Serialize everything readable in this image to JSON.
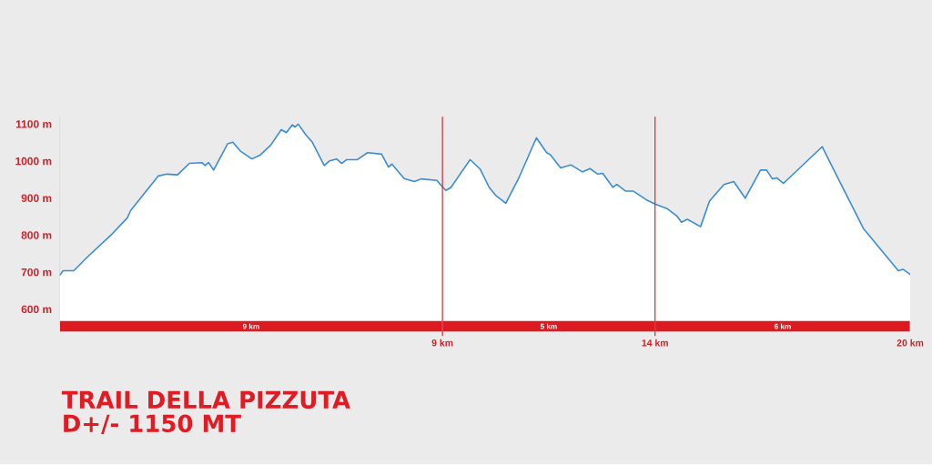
{
  "chart_data": {
    "type": "area",
    "title": "TRAIL DELLA PIZZUTA",
    "subtitle": "D+/- 1150 MT",
    "color": "#3a8dd1",
    "x": [
      0,
      0.08,
      0.33,
      0.65,
      1.22,
      1.59,
      1.67,
      2.32,
      2.52,
      2.77,
      3.05,
      3.34,
      3.42,
      3.5,
      3.62,
      3.95,
      4.07,
      4.25,
      4.52,
      4.72,
      4.96,
      5.21,
      5.33,
      5.47,
      5.53,
      5.61,
      5.78,
      5.94,
      6.22,
      6.35,
      6.51,
      6.63,
      6.75,
      7.0,
      7.24,
      7.57,
      7.73,
      7.81,
      8.1,
      8.34,
      8.5,
      8.87,
      8.95,
      9.08,
      9.2,
      9.65,
      9.89,
      10.1,
      10.25,
      10.49,
      10.79,
      11.21,
      11.45,
      11.54,
      11.78,
      12.02,
      12.29,
      12.47,
      12.65,
      12.77,
      13.01,
      13.1,
      13.31,
      13.49,
      13.79,
      14.0,
      14.28,
      14.52,
      14.62,
      14.76,
      15.07,
      15.28,
      15.62,
      15.85,
      16.12,
      16.48,
      16.62,
      16.76,
      16.86,
      17.02,
      17.93,
      18.17,
      18.9,
      19.72,
      19.83,
      20.0
    ],
    "values": [
      692,
      704,
      704,
      741,
      802,
      847,
      867,
      960,
      965,
      963,
      994,
      996,
      988,
      996,
      976,
      1047,
      1051,
      1027,
      1006,
      1017,
      1043,
      1085,
      1077,
      1098,
      1092,
      1100,
      1072,
      1051,
      988,
      1001,
      1006,
      994,
      1004,
      1004,
      1023,
      1019,
      984,
      992,
      953,
      945,
      952,
      948,
      937,
      921,
      929,
      1004,
      978,
      929,
      908,
      886,
      953,
      1063,
      1023,
      1017,
      982,
      990,
      971,
      980,
      965,
      967,
      929,
      937,
      919,
      919,
      896,
      884,
      872,
      851,
      835,
      843,
      823,
      892,
      937,
      945,
      900,
      976,
      976,
      952,
      955,
      940,
      1039,
      984,
      818,
      704,
      708,
      694
    ],
    "xlim": [
      0,
      20
    ],
    "xticks": [
      {
        "value": 9,
        "label": "9 km"
      },
      {
        "value": 14,
        "label": "14 km"
      },
      {
        "value": 20,
        "label": "20 km"
      }
    ],
    "ylim": [
      540,
      1120
    ],
    "yticks": [
      {
        "value": 600,
        "label": "600 m"
      },
      {
        "value": 700,
        "label": "700 m"
      },
      {
        "value": 800,
        "label": "800 m"
      },
      {
        "value": 900,
        "label": "900 m"
      },
      {
        "value": 1000,
        "label": "1000 m"
      },
      {
        "value": 1100,
        "label": "1100 m"
      }
    ],
    "ref_lines": [
      {
        "axis": "x",
        "value": 9,
        "color": "#d9141e"
      },
      {
        "axis": "x",
        "value": 14,
        "color": "#d9141e"
      }
    ],
    "bands": [
      {
        "axis": "x",
        "from": 0,
        "to": 9,
        "label": "9 km",
        "color": "#dc1a22"
      },
      {
        "axis": "x",
        "from": 9,
        "to": 14,
        "label": "5 km",
        "color": "#dc1a22"
      },
      {
        "axis": "x",
        "from": 14,
        "to": 20,
        "label": "6 km",
        "color": "#dc1a22"
      }
    ]
  }
}
